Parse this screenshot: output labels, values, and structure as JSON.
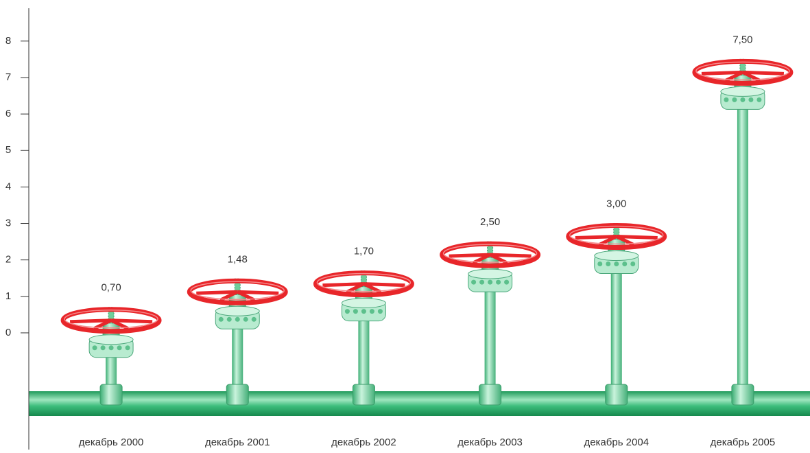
{
  "chart_data": {
    "type": "valve-bar",
    "categories": [
      "декабрь 2000",
      "декабрь 2001",
      "декабрь 2002",
      "декабрь 2003",
      "декабрь 2004",
      "декабрь 2005"
    ],
    "values": [
      0.7,
      1.48,
      1.7,
      2.5,
      3.0,
      7.5
    ],
    "value_labels": [
      "0,70",
      "1,48",
      "1,70",
      "2,50",
      "3,00",
      "7,50"
    ],
    "ylim": [
      -3.2,
      8.9
    ],
    "yticks": [
      0,
      1,
      2,
      3,
      4,
      5,
      6,
      7,
      8
    ],
    "color": "#e8262a",
    "grid": false
  }
}
